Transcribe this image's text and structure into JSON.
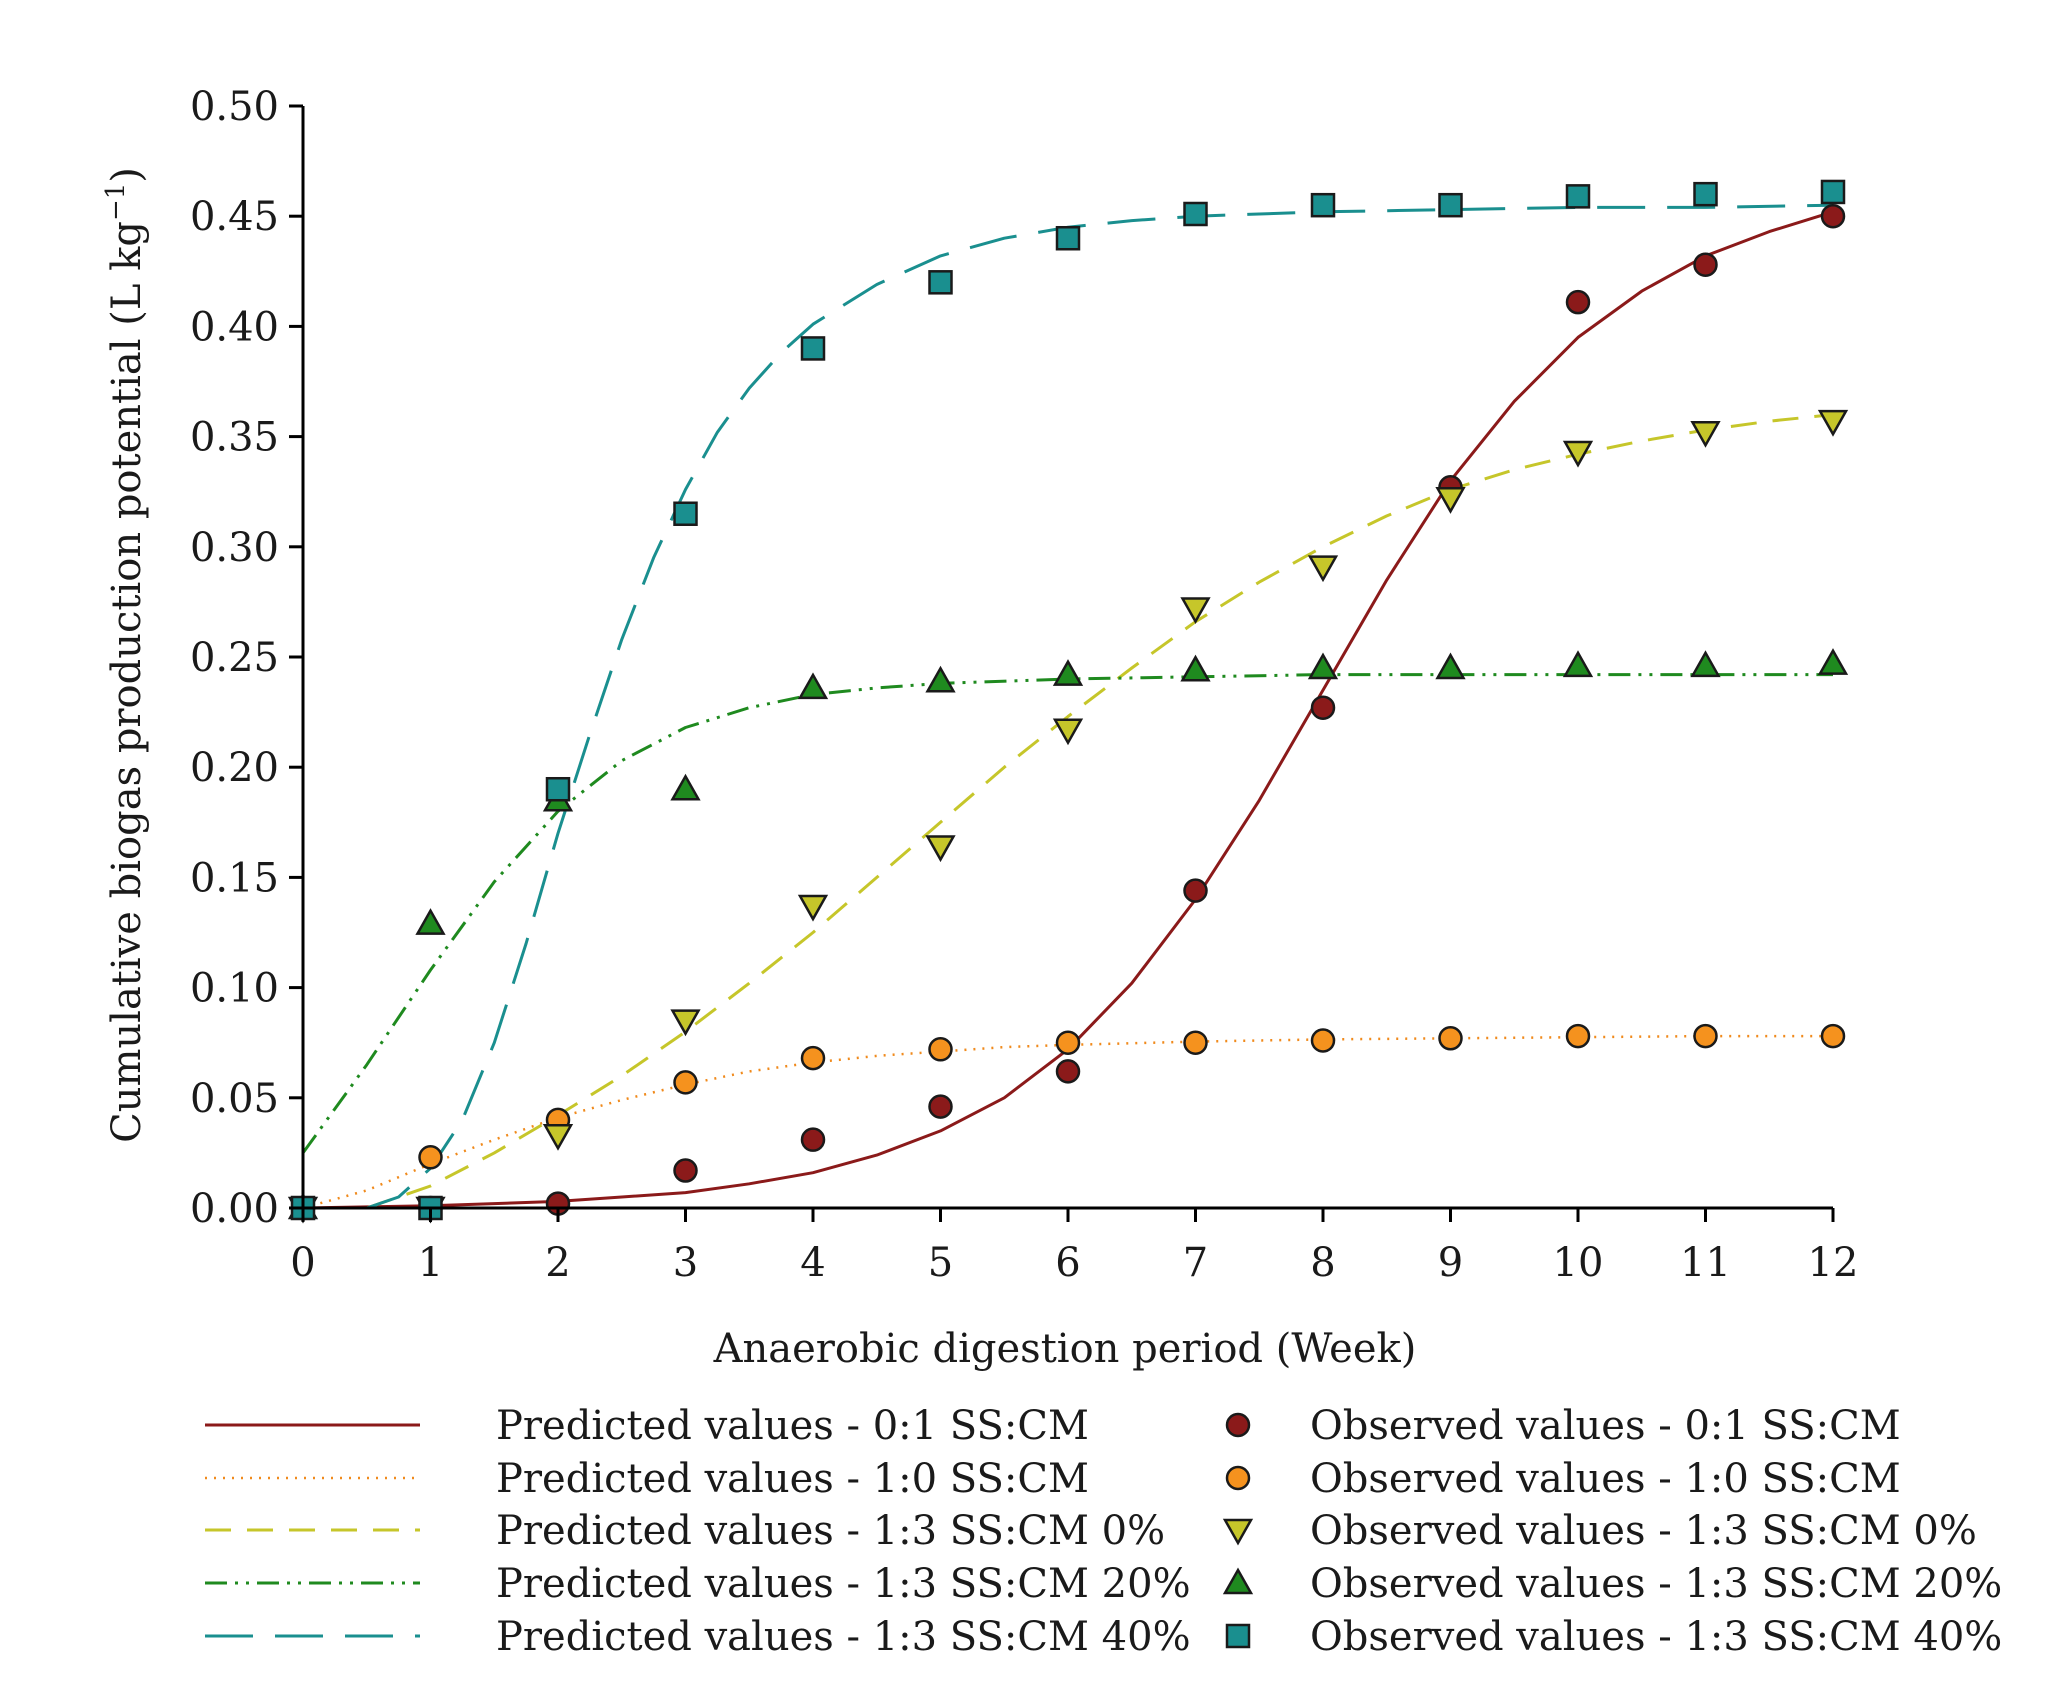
{
  "chart_data": {
    "type": "line",
    "title": "",
    "xlabel": "Anaerobic digestion period (Week)",
    "ylabel_main": "Cumulative biogas production potential (L kg",
    "ylabel_sup": "−1",
    "ylabel_close": ")",
    "xlim": [
      0,
      12
    ],
    "ylim": [
      0,
      0.5
    ],
    "x_ticks": [
      0,
      1,
      2,
      3,
      4,
      5,
      6,
      7,
      8,
      9,
      10,
      11,
      12
    ],
    "x_tick_labels": [
      "0",
      "1",
      "2",
      "3",
      "4",
      "5",
      "6",
      "7",
      "8",
      "9",
      "10",
      "11",
      "12"
    ],
    "y_ticks": [
      0,
      0.05,
      0.1,
      0.15,
      0.2,
      0.25,
      0.3,
      0.35,
      0.4,
      0.45,
      0.5
    ],
    "y_tick_labels": [
      "0.00",
      "0.05",
      "0.10",
      "0.15",
      "0.20",
      "0.25",
      "0.30",
      "0.35",
      "0.40",
      "0.45",
      "0.50"
    ],
    "predicted": [
      {
        "key": "p01",
        "name": "Predicted values - 0:1 SS:CM",
        "color": "#8b1a1a",
        "dash": "solid",
        "x": [
          0,
          0.5,
          1,
          1.5,
          2,
          2.5,
          3,
          3.5,
          4,
          4.5,
          5,
          5.5,
          6,
          6.5,
          7,
          7.5,
          8,
          8.5,
          9,
          9.5,
          10,
          10.5,
          11,
          11.5,
          12
        ],
        "y": [
          0.0,
          0.0005,
          0.001,
          0.002,
          0.003,
          0.005,
          0.007,
          0.011,
          0.016,
          0.024,
          0.035,
          0.05,
          0.072,
          0.102,
          0.14,
          0.185,
          0.235,
          0.285,
          0.33,
          0.366,
          0.395,
          0.416,
          0.432,
          0.443,
          0.452
        ]
      },
      {
        "key": "p10",
        "name": "Predicted values - 1:0 SS:CM",
        "color": "#f08a1c",
        "dash": "dot",
        "x": [
          0,
          0.5,
          1,
          1.5,
          2,
          2.5,
          3,
          3.5,
          4,
          4.5,
          5,
          5.5,
          6,
          7,
          8,
          9,
          10,
          11,
          12
        ],
        "y": [
          0.0,
          0.008,
          0.02,
          0.031,
          0.041,
          0.049,
          0.056,
          0.062,
          0.066,
          0.069,
          0.071,
          0.073,
          0.074,
          0.0755,
          0.0765,
          0.077,
          0.0775,
          0.078,
          0.078
        ]
      },
      {
        "key": "p13_0",
        "name": "Predicted values - 1:3 SS:CM 0%",
        "color": "#c6c62a",
        "dash": "dash",
        "x": [
          0.5,
          1,
          1.5,
          2,
          2.5,
          3,
          3.5,
          4,
          4.5,
          5,
          5.5,
          6,
          6.5,
          7,
          7.5,
          8,
          8.5,
          9,
          9.5,
          10,
          10.5,
          11,
          11.5,
          12
        ],
        "y": [
          0.0,
          0.01,
          0.025,
          0.042,
          0.06,
          0.08,
          0.102,
          0.125,
          0.15,
          0.175,
          0.2,
          0.223,
          0.245,
          0.266,
          0.284,
          0.3,
          0.314,
          0.326,
          0.335,
          0.342,
          0.348,
          0.353,
          0.357,
          0.36
        ]
      },
      {
        "key": "p13_20",
        "name": "Predicted values - 1:3 SS:CM 20%",
        "color": "#1f8a1f",
        "dash": "dashdotdot",
        "x": [
          0,
          0.5,
          1,
          1.5,
          2,
          2.5,
          3,
          3.5,
          4,
          4.5,
          5,
          6,
          7,
          8,
          9,
          10,
          11,
          12
        ],
        "y": [
          0.025,
          0.065,
          0.108,
          0.148,
          0.18,
          0.203,
          0.218,
          0.227,
          0.233,
          0.236,
          0.238,
          0.24,
          0.241,
          0.242,
          0.242,
          0.242,
          0.242,
          0.242
        ]
      },
      {
        "key": "p13_40",
        "name": "Predicted values - 1:3 SS:CM 40%",
        "color": "#1a8f8f",
        "dash": "longdash",
        "x": [
          0.5,
          0.75,
          1,
          1.25,
          1.5,
          1.75,
          2,
          2.25,
          2.5,
          2.75,
          3,
          3.25,
          3.5,
          3.75,
          4,
          4.5,
          5,
          5.5,
          6,
          6.5,
          7,
          8,
          9,
          10,
          11,
          12
        ],
        "y": [
          0.0,
          0.005,
          0.018,
          0.04,
          0.075,
          0.12,
          0.17,
          0.215,
          0.258,
          0.295,
          0.326,
          0.352,
          0.372,
          0.388,
          0.401,
          0.419,
          0.432,
          0.44,
          0.445,
          0.448,
          0.45,
          0.452,
          0.453,
          0.454,
          0.454,
          0.455
        ]
      }
    ],
    "observed": [
      {
        "key": "o01",
        "name": "Observed values - 0:1 SS:CM",
        "color": "#8b1a1a",
        "marker": "circle",
        "x": [
          0,
          1,
          2,
          3,
          4,
          5,
          6,
          7,
          8,
          9,
          10,
          11,
          12
        ],
        "y": [
          0.0,
          0.0,
          0.002,
          0.017,
          0.031,
          0.046,
          0.062,
          0.144,
          0.227,
          0.327,
          0.411,
          0.428,
          0.45
        ]
      },
      {
        "key": "o10",
        "name": "Observed values - 1:0 SS:CM",
        "color": "#f5921e",
        "marker": "circle",
        "x": [
          0,
          1,
          2,
          3,
          4,
          5,
          6,
          7,
          8,
          9,
          10,
          11,
          12
        ],
        "y": [
          0.0,
          0.023,
          0.04,
          0.057,
          0.068,
          0.072,
          0.075,
          0.075,
          0.076,
          0.077,
          0.078,
          0.078,
          0.078
        ]
      },
      {
        "key": "o13_0",
        "name": "Observed values - 1:3 SS:CM 0%",
        "color": "#c6c62a",
        "marker": "triangle-down",
        "x": [
          0,
          1,
          2,
          3,
          4,
          5,
          6,
          7,
          8,
          9,
          10,
          11,
          12
        ],
        "y": [
          0.0,
          0.0,
          0.033,
          0.085,
          0.137,
          0.164,
          0.217,
          0.272,
          0.291,
          0.322,
          0.343,
          0.352,
          0.357
        ]
      },
      {
        "key": "o13_20",
        "name": "Observed values - 1:3 SS:CM 20%",
        "color": "#1f8a1f",
        "marker": "triangle-up",
        "x": [
          0,
          1,
          2,
          3,
          4,
          5,
          6,
          7,
          8,
          9,
          10,
          11,
          12
        ],
        "y": [
          0.0,
          0.129,
          0.185,
          0.19,
          0.236,
          0.239,
          0.242,
          0.244,
          0.245,
          0.245,
          0.246,
          0.246,
          0.247
        ]
      },
      {
        "key": "o13_40",
        "name": "Observed values - 1:3 SS:CM 40%",
        "color": "#1a8f8f",
        "marker": "square",
        "x": [
          0,
          1,
          2,
          3,
          4,
          5,
          6,
          7,
          8,
          9,
          10,
          11,
          12
        ],
        "y": [
          0.0,
          0.0,
          0.19,
          0.315,
          0.39,
          0.42,
          0.44,
          0.451,
          0.455,
          0.455,
          0.459,
          0.46,
          0.461
        ]
      }
    ]
  }
}
